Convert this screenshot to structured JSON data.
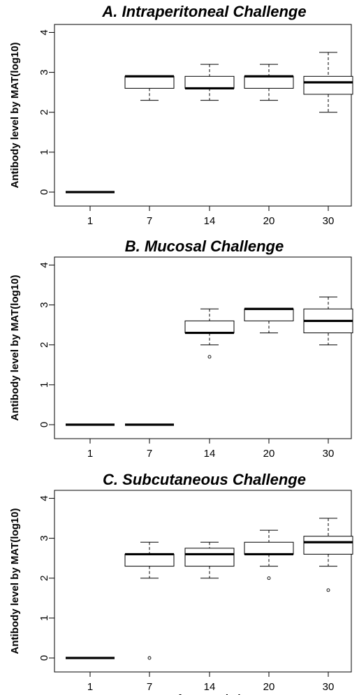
{
  "chart_data": [
    {
      "type": "box",
      "title": "A. Intraperitoneal Challenge",
      "ylabel": "Antibody level by MAT(log10)",
      "xlabel": "",
      "categories": [
        "1",
        "7",
        "14",
        "20",
        "30"
      ],
      "yticks": [
        "0",
        "1",
        "2",
        "3",
        "4"
      ],
      "ylim": [
        -0.35,
        4.2
      ],
      "boxes": [
        {
          "min": 0,
          "q1": 0,
          "median": 0,
          "q3": 0,
          "max": 0,
          "outliers": []
        },
        {
          "min": 2.3,
          "q1": 2.6,
          "median": 2.9,
          "q3": 2.9,
          "max": 2.9,
          "outliers": []
        },
        {
          "min": 2.3,
          "q1": 2.6,
          "median": 2.6,
          "q3": 2.9,
          "max": 3.2,
          "outliers": []
        },
        {
          "min": 2.3,
          "q1": 2.6,
          "median": 2.9,
          "q3": 2.9,
          "max": 3.2,
          "outliers": []
        },
        {
          "min": 2.0,
          "q1": 2.45,
          "median": 2.75,
          "q3": 2.9,
          "max": 3.5,
          "outliers": []
        }
      ]
    },
    {
      "type": "box",
      "title": "B. Mucosal Challenge",
      "ylabel": "Antibody level by MAT(log10)",
      "xlabel": "",
      "categories": [
        "1",
        "7",
        "14",
        "20",
        "30"
      ],
      "yticks": [
        "0",
        "1",
        "2",
        "3",
        "4"
      ],
      "ylim": [
        -0.35,
        4.2
      ],
      "boxes": [
        {
          "min": 0,
          "q1": 0,
          "median": 0,
          "q3": 0,
          "max": 0,
          "outliers": []
        },
        {
          "min": 0,
          "q1": 0,
          "median": 0,
          "q3": 0,
          "max": 0,
          "outliers": []
        },
        {
          "min": 2.0,
          "q1": 2.3,
          "median": 2.3,
          "q3": 2.6,
          "max": 2.9,
          "outliers": [
            1.7
          ]
        },
        {
          "min": 2.3,
          "q1": 2.6,
          "median": 2.9,
          "q3": 2.9,
          "max": 2.9,
          "outliers": []
        },
        {
          "min": 2.0,
          "q1": 2.3,
          "median": 2.6,
          "q3": 2.9,
          "max": 3.2,
          "outliers": []
        }
      ]
    },
    {
      "type": "box",
      "title": "C. Subcutaneous Challenge",
      "ylabel": "Antibody level by MAT(log10)",
      "xlabel": "Days after Inoculation",
      "categories": [
        "1",
        "7",
        "14",
        "20",
        "30"
      ],
      "yticks": [
        "0",
        "1",
        "2",
        "3",
        "4"
      ],
      "ylim": [
        -0.35,
        4.2
      ],
      "boxes": [
        {
          "min": 0,
          "q1": 0,
          "median": 0,
          "q3": 0,
          "max": 0,
          "outliers": []
        },
        {
          "min": 2.0,
          "q1": 2.3,
          "median": 2.6,
          "q3": 2.6,
          "max": 2.9,
          "outliers": [
            0
          ]
        },
        {
          "min": 2.0,
          "q1": 2.3,
          "median": 2.6,
          "q3": 2.75,
          "max": 2.9,
          "outliers": []
        },
        {
          "min": 2.3,
          "q1": 2.6,
          "median": 2.6,
          "q3": 2.9,
          "max": 3.2,
          "outliers": [
            2.0
          ]
        },
        {
          "min": 2.3,
          "q1": 2.6,
          "median": 2.9,
          "q3": 3.05,
          "max": 3.5,
          "outliers": [
            1.7
          ]
        }
      ]
    }
  ]
}
